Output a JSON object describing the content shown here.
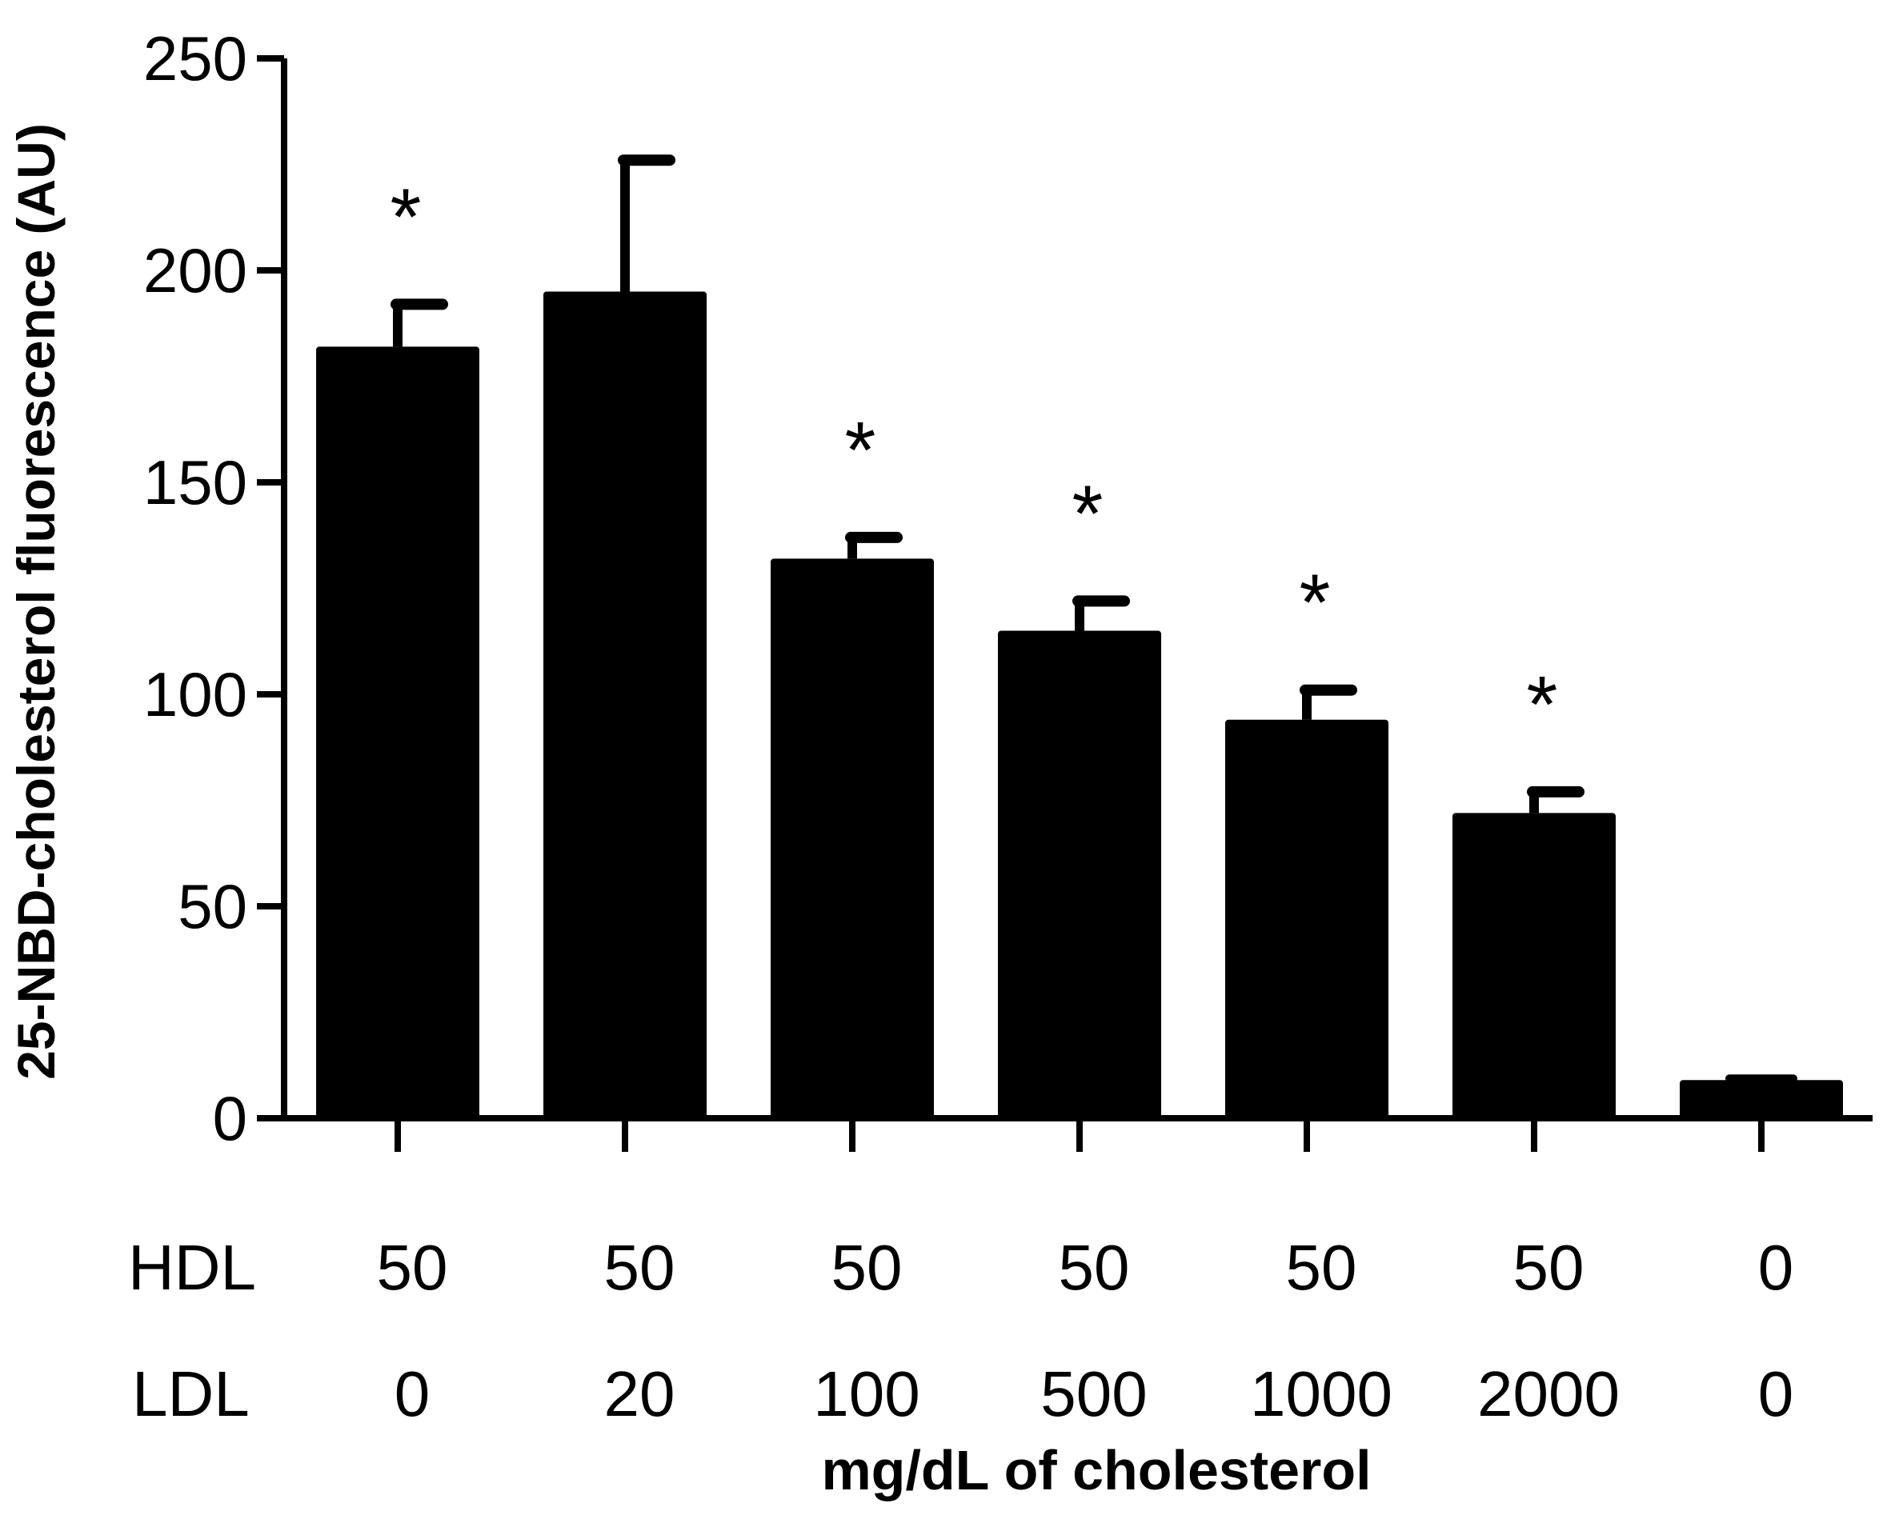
{
  "chart_data": {
    "type": "bar",
    "title": "",
    "ylabel": "25-NBD-cholesterol fluorescence (AU)",
    "xlabel": "mg/dL of cholesterol",
    "ylim": [
      0,
      250
    ],
    "yticks": [
      0,
      50,
      100,
      150,
      200,
      250
    ],
    "grid": false,
    "legend": "none",
    "row_labels": [
      "HDL",
      "LDL"
    ],
    "bars": [
      {
        "hdl": "50",
        "ldl": "0",
        "value": 182,
        "error": 10,
        "significant": true
      },
      {
        "hdl": "50",
        "ldl": "20",
        "value": 195,
        "error": 31,
        "significant": false
      },
      {
        "hdl": "50",
        "ldl": "100",
        "value": 132,
        "error": 5,
        "significant": true
      },
      {
        "hdl": "50",
        "ldl": "500",
        "value": 115,
        "error": 7,
        "significant": true
      },
      {
        "hdl": "50",
        "ldl": "1000",
        "value": 94,
        "error": 7,
        "significant": true
      },
      {
        "hdl": "50",
        "ldl": "2000",
        "value": 72,
        "error": 5,
        "significant": true
      },
      {
        "hdl": "0",
        "ldl": "0",
        "value": 9,
        "error": 0.5,
        "significant": false
      }
    ],
    "significance_marker": "*",
    "colors": {
      "bar": "#000000",
      "axis": "#000000",
      "background": "#ffffff"
    }
  }
}
